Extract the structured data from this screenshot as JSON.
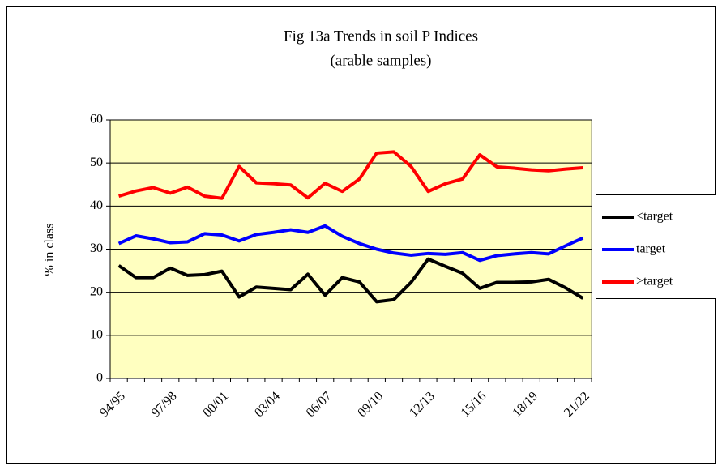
{
  "chart_data": {
    "type": "line",
    "title": "Fig 13a Trends in soil P Indices",
    "subtitle": "(arable samples)",
    "y_label": "% in class",
    "categories": [
      "94/95",
      null,
      null,
      "97/98",
      null,
      null,
      "00/01",
      null,
      null,
      "03/04",
      null,
      null,
      "06/07",
      null,
      null,
      "09/10",
      null,
      null,
      "12/13",
      null,
      null,
      "15/16",
      null,
      null,
      "18/19",
      null,
      null,
      "21/22"
    ],
    "series": [
      {
        "name": "<target",
        "color": "#000000",
        "values": [
          26.2,
          23.4,
          23.4,
          25.6,
          23.9,
          24.1,
          24.9,
          18.9,
          21.2,
          20.9,
          20.6,
          24.2,
          19.3,
          23.4,
          22.4,
          17.8,
          18.3,
          22.3,
          27.7,
          26.0,
          24.4,
          20.9,
          22.3,
          22.3,
          22.4,
          23.0,
          21.0,
          18.6
        ]
      },
      {
        "name": "target",
        "color": "#0000ff",
        "values": [
          31.3,
          33.1,
          32.4,
          31.5,
          31.7,
          33.6,
          33.3,
          31.9,
          33.4,
          33.9,
          34.5,
          33.9,
          35.4,
          33.0,
          31.3,
          30.0,
          29.1,
          28.6,
          29.0,
          28.8,
          29.2,
          27.4,
          28.5,
          28.9,
          29.2,
          28.9,
          30.8,
          32.6
        ]
      },
      {
        "name": ">target",
        "color": "#ff0000",
        "values": [
          42.3,
          43.5,
          44.3,
          43.0,
          44.4,
          42.3,
          41.8,
          49.2,
          45.4,
          45.2,
          44.9,
          41.9,
          45.3,
          43.4,
          46.3,
          52.3,
          52.6,
          49.2,
          43.4,
          45.2,
          46.3,
          51.9,
          49.1,
          48.8,
          48.4,
          48.2,
          48.6,
          48.9
        ]
      }
    ],
    "ylim": [
      0,
      60
    ],
    "yticks": [
      0,
      10,
      20,
      30,
      40,
      50,
      60
    ],
    "grid": true,
    "legend": "right",
    "plot_background": "#ffffc0"
  }
}
